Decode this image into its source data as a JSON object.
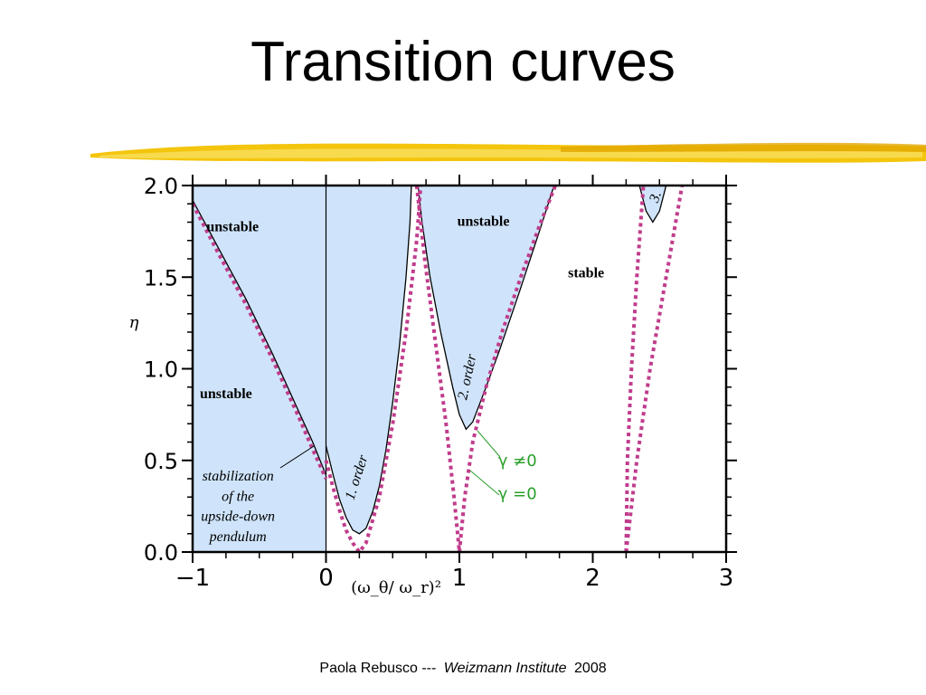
{
  "slide": {
    "title": "Transition curves",
    "footer": {
      "author": "Paola Rebusco ---",
      "institute": "Weizmann Institute",
      "year": "2008"
    }
  },
  "colors": {
    "unstable_fill": "#cfe4fb",
    "curve_gamma_nonzero": "#000000",
    "curve_gamma_zero": "#c03c8c",
    "annotation_green": "#2aa02a",
    "brush_yellow": "#f2c200"
  },
  "chart_data": {
    "type": "line",
    "title": "",
    "xlabel": "(ω_θ/ ω_r)²",
    "ylabel": "η",
    "xlim": [
      -1,
      3
    ],
    "ylim": [
      0,
      2
    ],
    "x_ticks": [
      -1,
      0,
      1,
      2,
      3
    ],
    "x_tick_labels": [
      "−1",
      "0",
      "1",
      "2",
      "3"
    ],
    "y_ticks": [
      0,
      0.5,
      1,
      1.5,
      2
    ],
    "y_tick_labels": [
      "0.0",
      "0.5",
      "1.0",
      "1.5",
      "2.0"
    ],
    "grid": false,
    "series": [
      {
        "name": "γ ≠0",
        "style": "solid",
        "curves": [
          {
            "x": [
              -1.0,
              -0.8,
              -0.6,
              -0.4,
              -0.2,
              -0.1,
              0.0
            ],
            "y": [
              1.92,
              1.65,
              1.38,
              1.08,
              0.76,
              0.6,
              0.42
            ]
          },
          {
            "x": [
              0.0,
              0.05,
              0.1,
              0.15,
              0.2,
              0.25,
              0.3,
              0.35,
              0.4,
              0.45,
              0.5,
              0.55,
              0.6,
              0.63,
              0.64,
              0.63
            ],
            "y": [
              0.58,
              0.43,
              0.29,
              0.19,
              0.12,
              0.1,
              0.13,
              0.22,
              0.36,
              0.56,
              0.82,
              1.12,
              1.5,
              1.8,
              2.0,
              2.0
            ]
          },
          {
            "x": [
              0.69,
              0.72,
              0.78,
              0.86,
              0.95,
              1.0,
              1.05,
              1.1,
              1.2,
              1.3,
              1.45,
              1.6,
              1.71
            ],
            "y": [
              2.0,
              1.8,
              1.5,
              1.2,
              0.9,
              0.75,
              0.67,
              0.71,
              0.9,
              1.1,
              1.42,
              1.75,
              2.0
            ]
          },
          {
            "x": [
              2.35,
              2.4,
              2.45,
              2.5,
              2.55
            ],
            "y": [
              2.0,
              1.86,
              1.8,
              1.86,
              2.0
            ]
          }
        ]
      },
      {
        "name": "γ =0",
        "style": "dotted",
        "curves": [
          {
            "x": [
              -1.0,
              -0.8,
              -0.6,
              -0.4,
              -0.2,
              -0.1,
              0.0
            ],
            "y": [
              1.9,
              1.62,
              1.35,
              1.05,
              0.73,
              0.56,
              0.4
            ]
          },
          {
            "x": [
              0.0,
              0.05,
              0.1,
              0.15,
              0.2,
              0.25,
              0.3,
              0.4,
              0.5,
              0.6,
              0.68,
              0.71
            ],
            "y": [
              0.5,
              0.36,
              0.23,
              0.12,
              0.05,
              0.0,
              0.05,
              0.3,
              0.7,
              1.2,
              1.7,
              2.0
            ]
          },
          {
            "x": [
              0.68,
              0.74,
              0.82,
              0.9,
              0.96,
              1.0
            ],
            "y": [
              2.0,
              1.6,
              1.15,
              0.7,
              0.3,
              0.0
            ]
          },
          {
            "x": [
              1.0,
              1.04,
              1.1,
              1.2,
              1.32,
              1.46,
              1.6,
              1.72
            ],
            "y": [
              0.0,
              0.3,
              0.6,
              0.9,
              1.2,
              1.5,
              1.78,
              2.0
            ]
          },
          {
            "x": [
              2.25,
              2.26,
              2.29,
              2.33,
              2.38
            ],
            "y": [
              0.0,
              0.5,
              1.0,
              1.5,
              2.0
            ]
          },
          {
            "x": [
              2.25,
              2.33,
              2.43,
              2.55,
              2.67
            ],
            "y": [
              0.0,
              0.5,
              1.0,
              1.5,
              2.0
            ]
          }
        ]
      }
    ],
    "regions": [
      {
        "label": "unstable",
        "x": -0.7,
        "y": 1.75
      },
      {
        "label": "unstable",
        "x": -0.75,
        "y": 0.84
      },
      {
        "label": "unstable",
        "x": 1.18,
        "y": 1.78
      },
      {
        "label": "stable",
        "x": 1.95,
        "y": 1.5
      }
    ],
    "annotations": [
      {
        "text": "1. order",
        "x": 0.26,
        "y": 0.4,
        "rotation": -72
      },
      {
        "text": "2. order",
        "x": 1.09,
        "y": 0.95,
        "rotation": -78
      },
      {
        "text": "3.",
        "x": 2.5,
        "y": 1.93,
        "rotation": -70
      },
      {
        "text": "stabilization",
        "x": -0.66,
        "y": 0.39
      },
      {
        "text": "of the",
        "x": -0.66,
        "y": 0.28
      },
      {
        "text": "upside-down",
        "x": -0.66,
        "y": 0.17
      },
      {
        "text": "pendulum",
        "x": -0.66,
        "y": 0.06
      },
      {
        "text": "γ ≠0",
        "x": 1.29,
        "y": 0.47
      },
      {
        "text": "γ =0",
        "x": 1.29,
        "y": 0.29
      }
    ]
  }
}
